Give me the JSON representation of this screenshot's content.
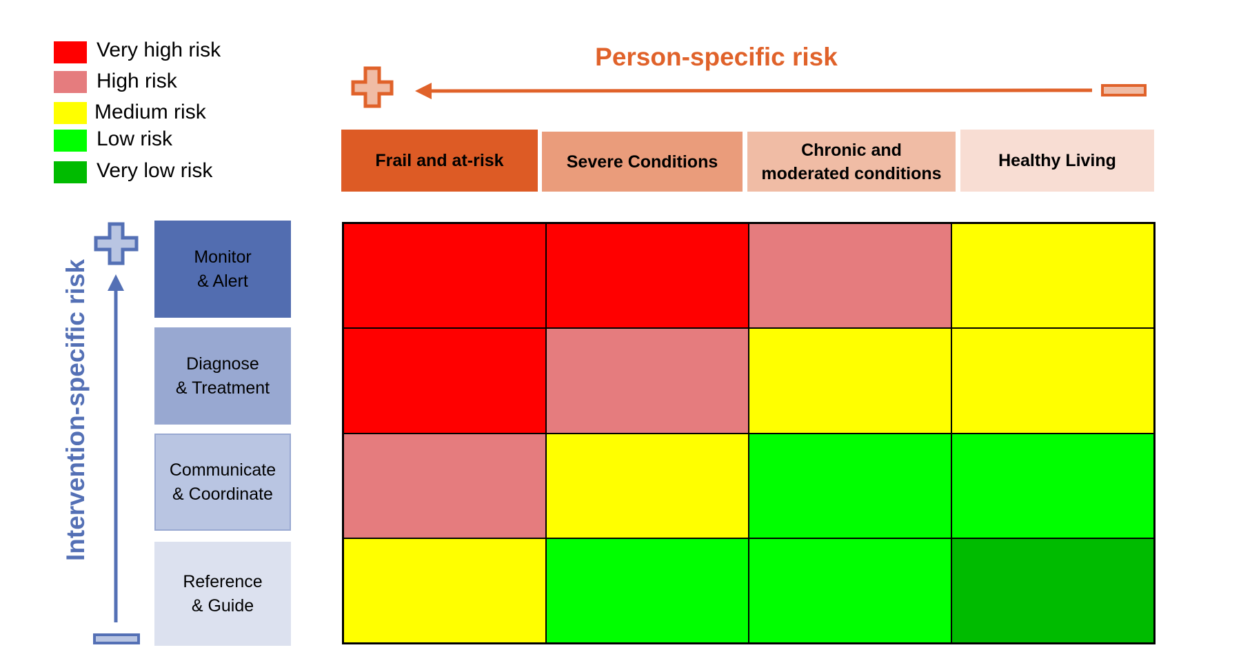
{
  "legend": [
    {
      "label": "Very high risk",
      "color": "#FF0000"
    },
    {
      "label": "High risk",
      "color": "#E57C7E"
    },
    {
      "label": "Medium risk",
      "color": "#FFFF00"
    },
    {
      "label": "Low risk",
      "color": "#00FF00"
    },
    {
      "label": "Very low risk",
      "color": "#00BB00"
    }
  ],
  "x_axis": {
    "title": "Person-specific risk",
    "high_symbol": "plus-icon",
    "low_symbol": "minus-icon",
    "color": "#E0622A"
  },
  "y_axis": {
    "title": "Intervention-specific risk",
    "high_symbol": "plus-icon",
    "low_symbol": "minus-icon",
    "color": "#5470B5"
  },
  "columns": [
    {
      "line1": "Frail and at-risk",
      "line2": "",
      "color": "#DD5B25"
    },
    {
      "line1": "Severe Conditions",
      "line2": "",
      "color": "#EA9C7B"
    },
    {
      "line1": "Chronic and",
      "line2": "moderated conditions",
      "color": "#F0BCA5"
    },
    {
      "line1": "Healthy Living",
      "line2": "",
      "color": "#F8DDD3"
    }
  ],
  "rows": [
    {
      "line1": "Monitor",
      "line2": "& Alert",
      "color": "#526DB0"
    },
    {
      "line1": "Diagnose",
      "line2": "& Treatment",
      "color": "#98A8D1"
    },
    {
      "line1": "Communicate",
      "line2": "& Coordinate",
      "color": "#B9C5E2"
    },
    {
      "line1": "Reference",
      "line2": "& Guide",
      "color": "#DCE1EF"
    }
  ],
  "matrix": [
    [
      "Very high risk",
      "Very high risk",
      "High risk",
      "Medium risk"
    ],
    [
      "Very high risk",
      "High risk",
      "Medium risk",
      "Medium risk"
    ],
    [
      "High risk",
      "Medium risk",
      "Low risk",
      "Low risk"
    ],
    [
      "Medium risk",
      "Low risk",
      "Low risk",
      "Very low risk"
    ]
  ]
}
